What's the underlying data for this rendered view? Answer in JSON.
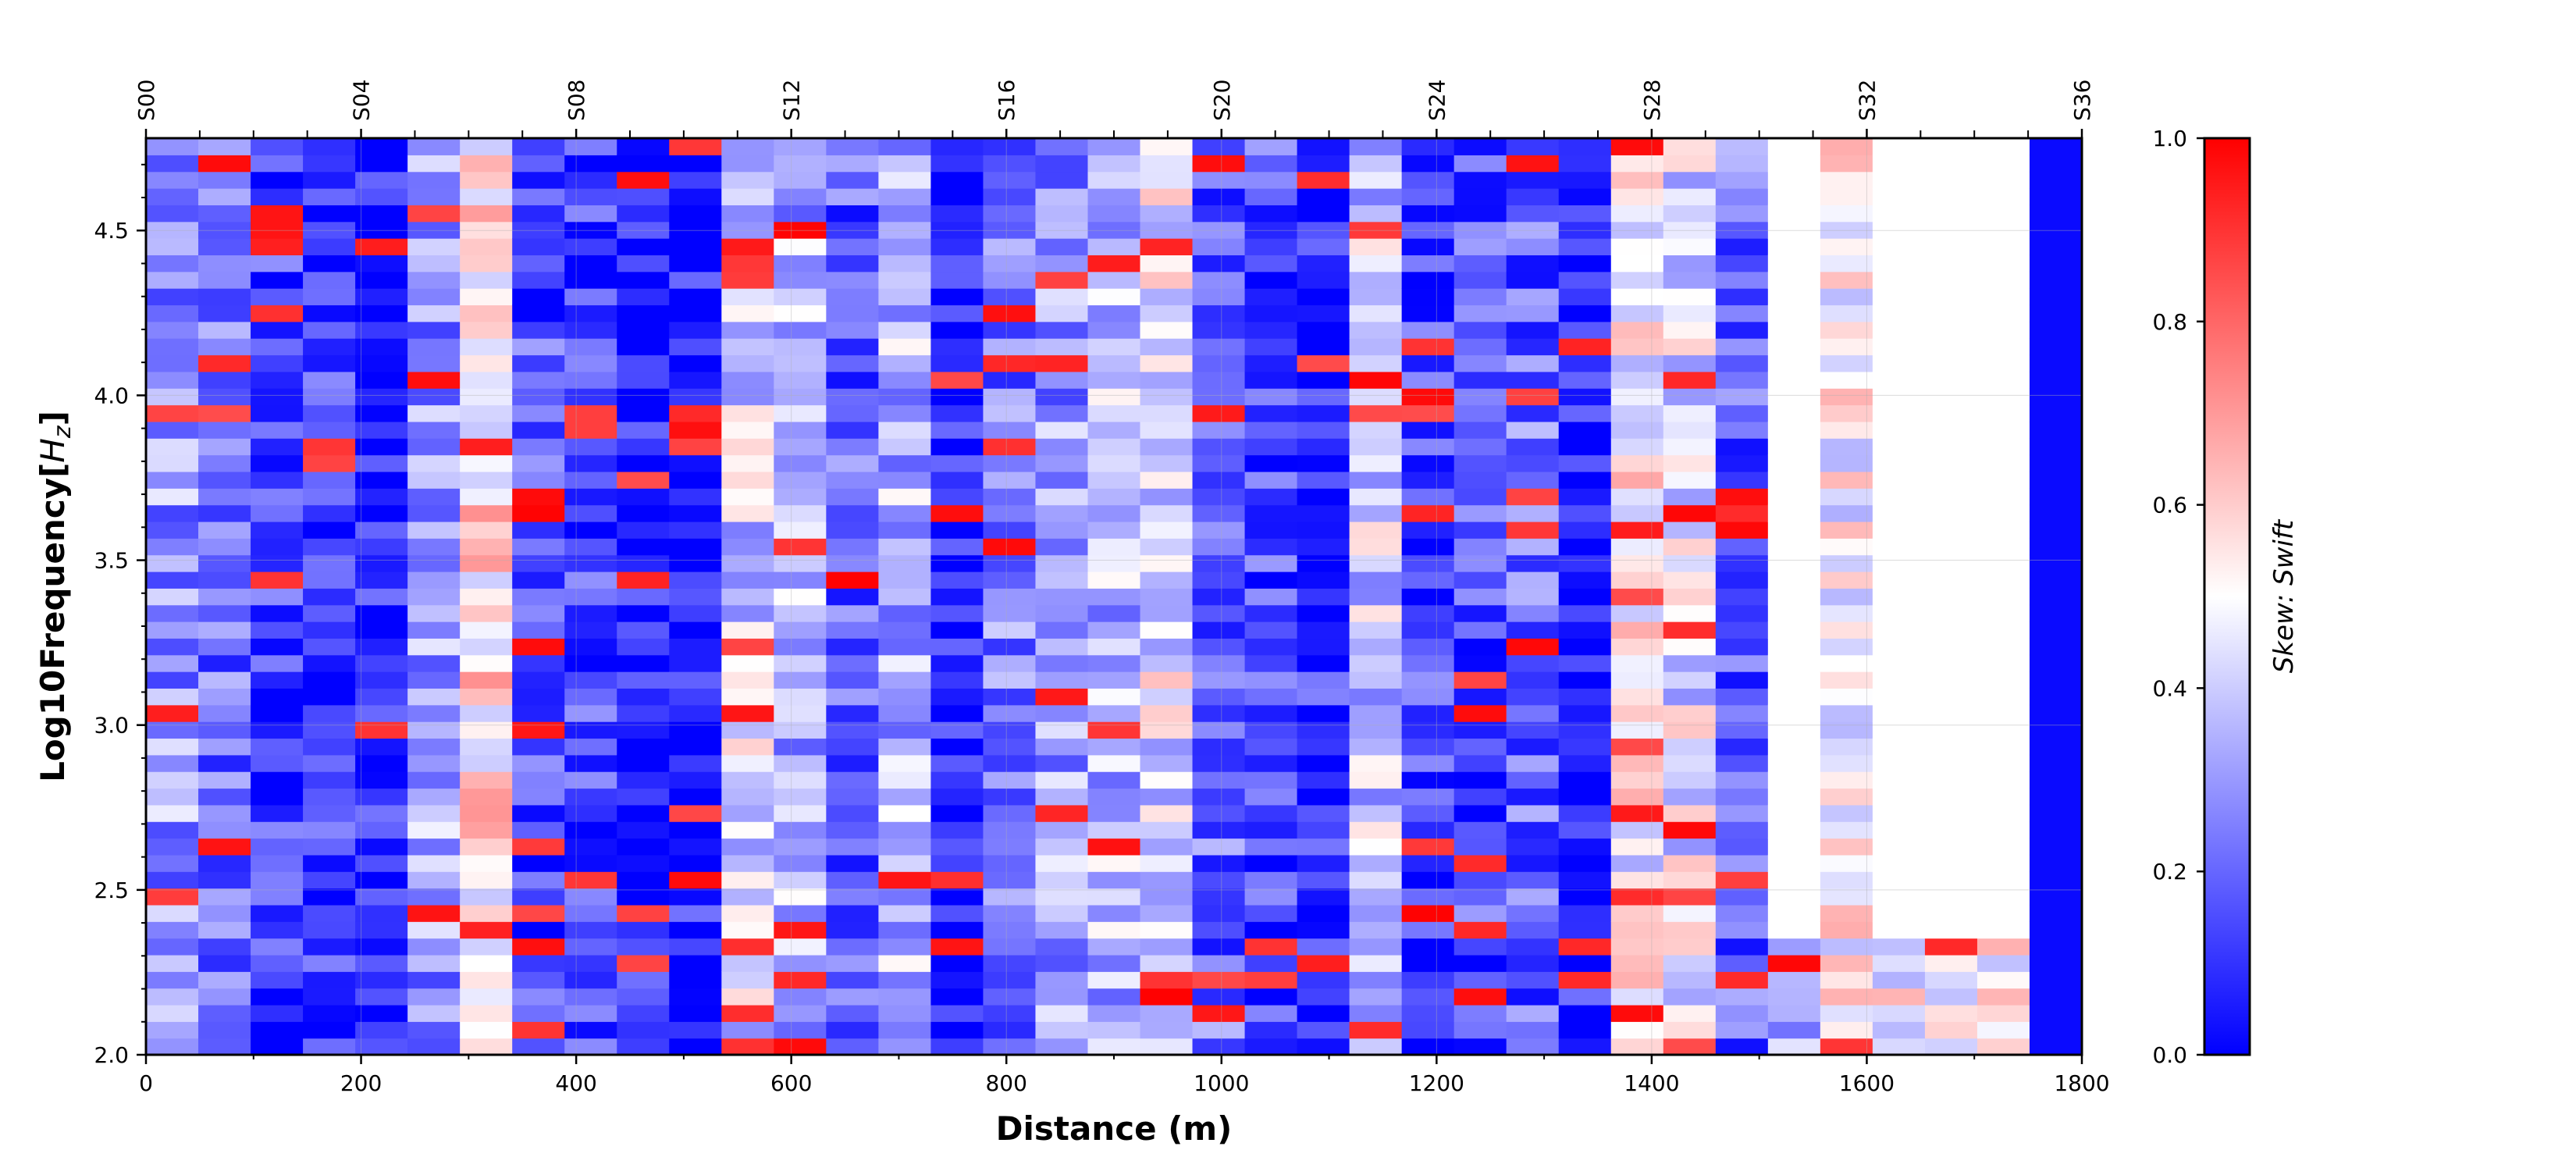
{
  "chart_data": {
    "type": "heatmap",
    "xlabel": "Distance (m)",
    "ylabel": "Log10Frequency[$H_z$]",
    "ylabel_parts": {
      "main": "Log10Frequency[",
      "italic": "H",
      "sub": "z",
      "end": "]"
    },
    "colorbar_label": "Skew: Swift",
    "xlim": [
      0,
      1800
    ],
    "ylim": [
      2.0,
      4.78
    ],
    "colorbar_range": [
      0.0,
      1.0
    ],
    "colormap": [
      "#0000ff",
      "#ffffff",
      "#ff0000"
    ],
    "x_ticks": [
      "0",
      "200",
      "400",
      "600",
      "800",
      "1000",
      "1200",
      "1400",
      "1600",
      "1800"
    ],
    "x_tick_values": [
      0,
      200,
      400,
      600,
      800,
      1000,
      1200,
      1400,
      1600,
      1800
    ],
    "y_ticks": [
      "2.0",
      "2.5",
      "3.0",
      "3.5",
      "4.0",
      "4.5"
    ],
    "y_tick_values": [
      2.0,
      2.5,
      3.0,
      3.5,
      4.0,
      4.5
    ],
    "colorbar_ticks": [
      "0.0",
      "0.2",
      "0.4",
      "0.6",
      "0.8",
      "1.0"
    ],
    "colorbar_tick_values": [
      0.0,
      0.2,
      0.4,
      0.6,
      0.8,
      1.0
    ],
    "stations": [
      "S00",
      "S04",
      "S08",
      "S12",
      "S16",
      "S20",
      "S24",
      "S28",
      "S32",
      "S36"
    ],
    "station_positions": [
      0,
      200,
      400,
      600,
      800,
      1000,
      1200,
      1400,
      1600,
      1800
    ],
    "grid": true,
    "n_station_columns": 37,
    "column_width_m": 50,
    "n_frequency_rows": 55,
    "bottom_colors_by_station": [
      "red",
      "blue",
      "blue",
      "pink",
      "blue",
      "blue",
      "pale",
      "red",
      "blue",
      "pale",
      "blue",
      "white",
      "white",
      "blue",
      "pale",
      "blue",
      "blue",
      "blue",
      "blue",
      "pink",
      "white",
      "blue",
      "blue",
      "white",
      "blue",
      "blue",
      "pale",
      "blue",
      "pale",
      "blue",
      "blue",
      "pale",
      "white",
      "white",
      "white",
      "blue",
      "pale"
    ]
  }
}
